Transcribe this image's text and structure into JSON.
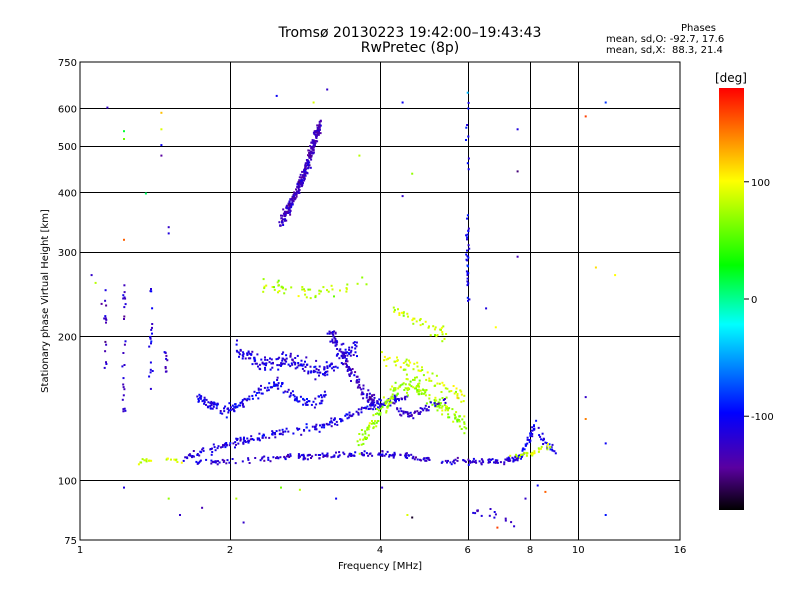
{
  "chart_data": {
    "type": "scatter",
    "title": "Tromsø 20130223 19:42:00–19:43:43",
    "subtitle": "RwPretec (8p)",
    "xlabel": "Frequency [MHz]",
    "ylabel": "Stationary phase Virtual Height [km]",
    "xscale": "log",
    "yscale": "log",
    "xlim": [
      1,
      16
    ],
    "ylim": [
      75,
      750
    ],
    "xticks": [
      1,
      2,
      4,
      6,
      8,
      10,
      16
    ],
    "xtick_labels": [
      "1",
      "2",
      "4",
      "6",
      "8",
      "10",
      "16"
    ],
    "yticks": [
      75,
      100,
      200,
      300,
      400,
      500,
      600,
      750
    ],
    "ytick_labels": [
      "75",
      "100",
      "200",
      "300",
      "400",
      "500",
      "600",
      "750"
    ],
    "grid": true,
    "colorbar": {
      "label": "[deg]",
      "range": [
        -180,
        180
      ],
      "ticks": [
        100,
        0,
        -100
      ],
      "tick_labels": [
        "100",
        "0",
        "-100"
      ]
    },
    "stats": {
      "heading": "Phases",
      "O": "mean, sd,O: -92.7, 17.6",
      "X": "mean, sd,X:  88.3, 21.4"
    },
    "traces": [
      {
        "x": [
          2.52,
          2.62,
          2.72,
          2.82,
          2.92,
          3.02
        ],
        "y": [
          350,
          375,
          405,
          445,
          500,
          560
        ],
        "spread": 0.05,
        "phase": -125,
        "n": 320
      },
      {
        "x": [
          1.7,
          2.0,
          2.5,
          3.0,
          3.5,
          4.0,
          4.5,
          5.0,
          6.0,
          7.0,
          7.6
        ],
        "y": [
          110,
          110,
          112,
          113,
          114,
          114,
          113,
          111,
          110,
          110,
          112
        ],
        "spread": 0.02,
        "phase": -115,
        "n": 260
      },
      {
        "x": [
          1.6,
          1.8,
          2.0,
          2.3,
          2.6,
          3.0,
          3.3,
          3.6,
          3.9,
          4.2,
          4.5
        ],
        "y": [
          112,
          116,
          120,
          124,
          127,
          130,
          134,
          140,
          145,
          147,
          150
        ],
        "spread": 0.03,
        "phase": -110,
        "n": 220
      },
      {
        "x": [
          1.72,
          1.82,
          1.95,
          2.1,
          2.3,
          2.5,
          2.7,
          2.9,
          3.1
        ],
        "y": [
          150,
          145,
          140,
          145,
          155,
          160,
          150,
          145,
          150
        ],
        "spread": 0.04,
        "phase": -105,
        "n": 170
      },
      {
        "x": [
          2.05,
          2.2,
          2.4,
          2.6,
          2.8,
          3.0,
          3.2,
          3.4,
          3.6
        ],
        "y": [
          190,
          180,
          175,
          180,
          175,
          170,
          175,
          185,
          190
        ],
        "spread": 0.06,
        "phase": -110,
        "n": 200
      },
      {
        "x": [
          3.15,
          3.3,
          3.45,
          3.6,
          3.75,
          3.9
        ],
        "y": [
          205,
          190,
          170,
          160,
          150,
          145
        ],
        "spread": 0.05,
        "phase": -120,
        "n": 120
      },
      {
        "x": [
          3.6,
          3.8,
          4.0,
          4.3,
          4.6,
          5.0,
          5.5,
          5.9
        ],
        "y": [
          120,
          130,
          140,
          155,
          160,
          150,
          140,
          130
        ],
        "spread": 0.06,
        "phase": 75,
        "n": 200
      },
      {
        "x": [
          4.0,
          4.5,
          5.0,
          5.5,
          5.9
        ],
        "y": [
          180,
          175,
          165,
          155,
          150
        ],
        "spread": 0.06,
        "phase": 88,
        "n": 70
      },
      {
        "x": [
          4.3,
          4.6,
          5.0,
          5.4
        ],
        "y": [
          140,
          138,
          143,
          148
        ],
        "spread": 0.03,
        "phase": -118,
        "n": 50
      },
      {
        "x": [
          2.3,
          2.6,
          3.0,
          3.4,
          3.8
        ],
        "y": [
          260,
          250,
          245,
          255,
          260
        ],
        "spread": 0.05,
        "phase": 80,
        "n": 50
      },
      {
        "x": [
          4.2,
          4.6,
          5.0,
          5.5
        ],
        "y": [
          230,
          220,
          210,
          200
        ],
        "spread": 0.05,
        "phase": 85,
        "n": 40
      },
      {
        "x": [
          7.6,
          7.8,
          8.0,
          8.2,
          8.5,
          9.0
        ],
        "y": [
          112,
          118,
          125,
          132,
          120,
          115
        ],
        "spread": 0.03,
        "phase": -100,
        "n": 60
      },
      {
        "x": [
          7.3,
          7.7,
          8.2,
          8.8
        ],
        "y": [
          112,
          114,
          116,
          118
        ],
        "spread": 0.03,
        "phase": 85,
        "n": 30
      },
      {
        "x": [
          1.3,
          1.45,
          1.6
        ],
        "y": [
          110,
          111,
          110
        ],
        "spread": 0.02,
        "phase": 85,
        "n": 20
      },
      {
        "x": [
          1.22,
          1.22,
          1.22,
          1.22
        ],
        "y": [
          130,
          160,
          200,
          260
        ],
        "spread": 0.12,
        "phase": -120,
        "n": 25
      },
      {
        "x": [
          1.38,
          1.38,
          1.38
        ],
        "y": [
          150,
          200,
          260
        ],
        "spread": 0.1,
        "phase": -110,
        "n": 20
      },
      {
        "x": [
          1.12,
          1.12,
          1.12
        ],
        "y": [
          170,
          200,
          260
        ],
        "spread": 0.1,
        "phase": -125,
        "n": 15
      },
      {
        "x": [
          1.48,
          1.48,
          1.48
        ],
        "y": [
          170,
          180,
          190
        ],
        "spread": 0.05,
        "phase": -120,
        "n": 10
      },
      {
        "x": [
          5.97,
          5.97,
          5.97,
          5.97,
          5.97
        ],
        "y": [
          230,
          290,
          350,
          450,
          600
        ],
        "spread": 0.12,
        "phase": -100,
        "n": 40
      },
      {
        "x": [
          6.0,
          6.5,
          7.0,
          7.5
        ],
        "y": [
          88,
          86,
          84,
          80
        ],
        "spread": 0.03,
        "phase": -120,
        "n": 15
      }
    ],
    "scatter_points": [
      {
        "x": 1.13,
        "y": 605,
        "phase": -120
      },
      {
        "x": 1.22,
        "y": 540,
        "phase": 20
      },
      {
        "x": 1.22,
        "y": 520,
        "phase": 60
      },
      {
        "x": 1.45,
        "y": 590,
        "phase": 120
      },
      {
        "x": 1.45,
        "y": 545,
        "phase": 90
      },
      {
        "x": 1.45,
        "y": 505,
        "phase": -100
      },
      {
        "x": 1.45,
        "y": 480,
        "phase": -140
      },
      {
        "x": 1.35,
        "y": 400,
        "phase": 10
      },
      {
        "x": 1.5,
        "y": 340,
        "phase": -120
      },
      {
        "x": 1.5,
        "y": 330,
        "phase": -110
      },
      {
        "x": 1.22,
        "y": 320,
        "phase": 150
      },
      {
        "x": 2.47,
        "y": 640,
        "phase": -100
      },
      {
        "x": 2.93,
        "y": 620,
        "phase": 90
      },
      {
        "x": 3.12,
        "y": 660,
        "phase": -120
      },
      {
        "x": 3.62,
        "y": 480,
        "phase": 80
      },
      {
        "x": 4.42,
        "y": 620,
        "phase": -100
      },
      {
        "x": 4.62,
        "y": 440,
        "phase": 70
      },
      {
        "x": 4.42,
        "y": 395,
        "phase": -120
      },
      {
        "x": 7.52,
        "y": 545,
        "phase": -110
      },
      {
        "x": 7.52,
        "y": 445,
        "phase": -150
      },
      {
        "x": 7.52,
        "y": 295,
        "phase": -130
      },
      {
        "x": 10.3,
        "y": 580,
        "phase": 160
      },
      {
        "x": 11.3,
        "y": 620,
        "phase": -80
      },
      {
        "x": 5.97,
        "y": 650,
        "phase": -40
      },
      {
        "x": 10.8,
        "y": 280,
        "phase": 110
      },
      {
        "x": 11.8,
        "y": 270,
        "phase": 100
      },
      {
        "x": 10.3,
        "y": 150,
        "phase": -120
      },
      {
        "x": 10.3,
        "y": 135,
        "phase": 140
      },
      {
        "x": 11.3,
        "y": 120,
        "phase": -100
      },
      {
        "x": 11.3,
        "y": 85,
        "phase": -90
      },
      {
        "x": 1.22,
        "y": 97,
        "phase": -110
      },
      {
        "x": 1.5,
        "y": 92,
        "phase": 70
      },
      {
        "x": 1.58,
        "y": 85,
        "phase": -120
      },
      {
        "x": 1.75,
        "y": 88,
        "phase": -130
      },
      {
        "x": 2.05,
        "y": 92,
        "phase": 80
      },
      {
        "x": 2.12,
        "y": 82,
        "phase": -120
      },
      {
        "x": 2.52,
        "y": 97,
        "phase": 60
      },
      {
        "x": 2.75,
        "y": 96,
        "phase": 80
      },
      {
        "x": 3.25,
        "y": 92,
        "phase": -100
      },
      {
        "x": 4.02,
        "y": 97,
        "phase": -120
      },
      {
        "x": 4.52,
        "y": 85,
        "phase": 90
      },
      {
        "x": 4.62,
        "y": 84,
        "phase": -170
      },
      {
        "x": 8.25,
        "y": 98,
        "phase": -100
      },
      {
        "x": 8.55,
        "y": 95,
        "phase": 150
      },
      {
        "x": 7.8,
        "y": 92,
        "phase": -120
      },
      {
        "x": 6.85,
        "y": 80,
        "phase": 160
      },
      {
        "x": 1.05,
        "y": 270,
        "phase": -120
      },
      {
        "x": 1.07,
        "y": 260,
        "phase": 80
      },
      {
        "x": 1.1,
        "y": 235,
        "phase": -140
      },
      {
        "x": 6.5,
        "y": 230,
        "phase": -110
      },
      {
        "x": 6.8,
        "y": 210,
        "phase": 100
      }
    ]
  }
}
